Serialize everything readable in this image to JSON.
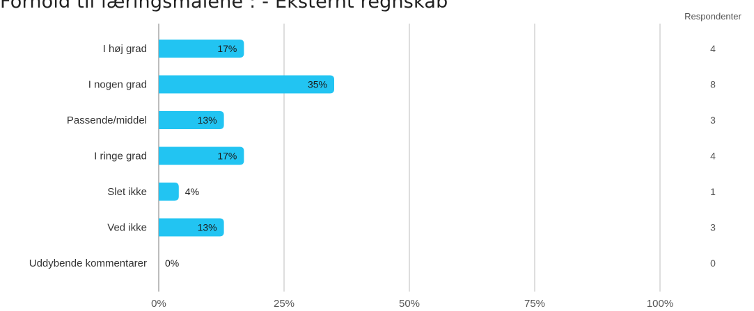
{
  "title": "Forhold til læringsmålene :  - Eksternt regnskab",
  "colors": {
    "bar": "#22c4f2",
    "grid": "#cccccc",
    "axis": "#999999"
  },
  "chart_data": {
    "type": "bar",
    "orientation": "horizontal",
    "title": "Forhold til læringsmålene :  - Eksternt regnskab",
    "categories": [
      "I høj grad",
      "I nogen grad",
      "Passende/middel",
      "I ringe grad",
      "Slet ikke",
      "Ved ikke",
      "Uddybende kommentarer"
    ],
    "values": [
      17,
      35,
      13,
      17,
      4,
      13,
      0
    ],
    "value_labels": [
      "17%",
      "35%",
      "13%",
      "17%",
      "4%",
      "13%",
      "0%"
    ],
    "respondents_header": "Respondenter",
    "respondents": [
      4,
      8,
      3,
      4,
      1,
      3,
      0
    ],
    "xlim": [
      0,
      100
    ],
    "xticks": [
      0,
      25,
      50,
      75,
      100
    ],
    "xtick_labels": [
      "0%",
      "25%",
      "50%",
      "75%",
      "100%"
    ],
    "grid": true,
    "xlabel": "",
    "ylabel": ""
  }
}
